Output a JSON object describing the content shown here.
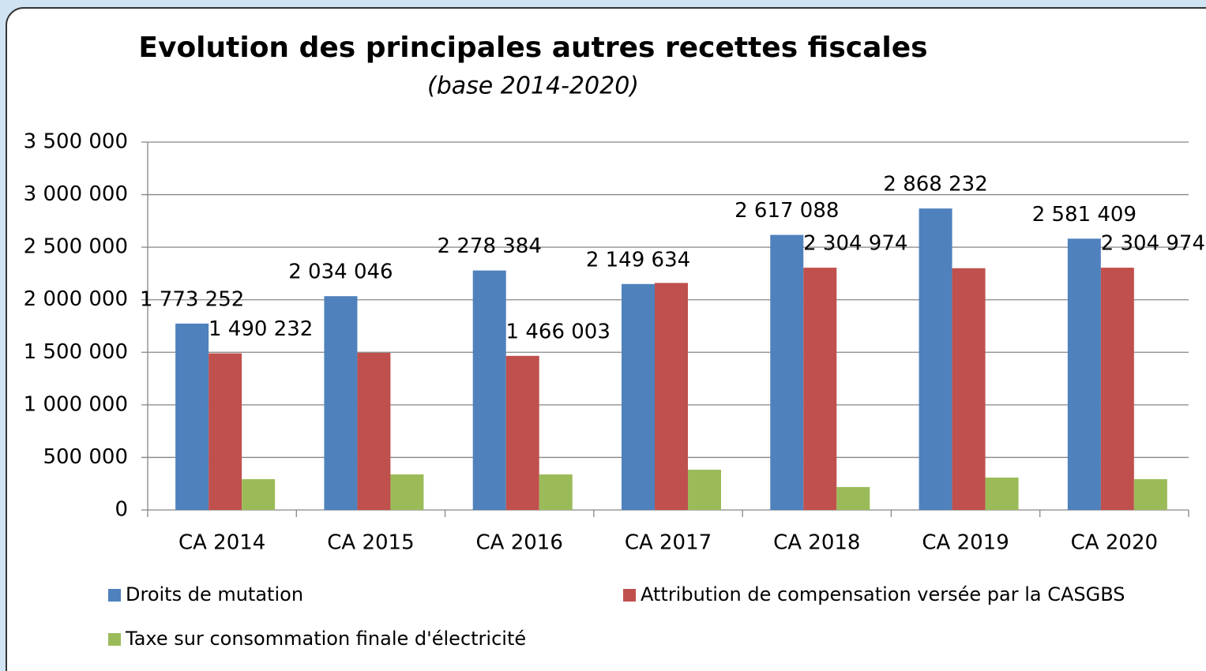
{
  "chart_data": {
    "type": "bar",
    "title": "Evolution des principales autres recettes fiscales",
    "subtitle": "(base 2014-2020)",
    "categories": [
      "CA 2014",
      "CA 2015",
      "CA 2016",
      "CA 2017",
      "CA 2018",
      "CA 2019",
      "CA 2020"
    ],
    "series": [
      {
        "name": "Droits de mutation",
        "color": "#4f81bd",
        "values": [
          1773252,
          2034046,
          2278384,
          2149634,
          2617088,
          2868232,
          2581409
        ],
        "value_labels": [
          "1 773 252",
          "2 034 046",
          "2 278 384",
          "2 149 634",
          "2 617 088",
          "2 868 232",
          "2 581 409"
        ]
      },
      {
        "name": "Attribution de compensation versée par la CASGBS",
        "color": "#c0504d",
        "values": [
          1490232,
          1495000,
          1466003,
          2160000,
          2304974,
          2300000,
          2304974
        ],
        "value_labels": [
          "1 490 232",
          null,
          "1 466 003",
          null,
          "2 304 974",
          null,
          "2 304 974"
        ]
      },
      {
        "name": "Taxe sur consommation finale d'électricité",
        "color": "#9bbb59",
        "values": [
          293000,
          338000,
          338000,
          383000,
          218000,
          308000,
          293000
        ]
      }
    ],
    "ylim": [
      0,
      3500000
    ],
    "yticks": [
      0,
      {
        "value": 500000,
        "label": "500 000"
      },
      {
        "value": 1000000,
        "label": "1 000 000"
      },
      {
        "value": 1500000,
        "label": "1 500 000"
      },
      {
        "value": 2000000,
        "label": "2 000 000"
      },
      {
        "value": 2500000,
        "label": "2 500 000"
      },
      {
        "value": 3000000,
        "label": "3 000 000"
      },
      {
        "value": 3500000,
        "label": "3 500 000"
      }
    ],
    "grid": true
  }
}
